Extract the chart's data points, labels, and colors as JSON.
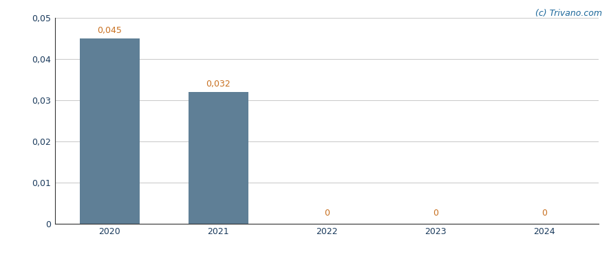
{
  "categories": [
    "2020",
    "2021",
    "2022",
    "2023",
    "2024"
  ],
  "values": [
    0.045,
    0.032,
    0,
    0,
    0
  ],
  "bar_color": "#5f7f96",
  "ylim": [
    0,
    0.05
  ],
  "yticks": [
    0,
    0.01,
    0.02,
    0.03,
    0.04,
    0.05
  ],
  "ytick_labels": [
    "0",
    "0,01",
    "0,02",
    "0,03",
    "0,04",
    "0,05"
  ],
  "bar_labels": [
    "0,045",
    "0,032",
    "0",
    "0",
    "0"
  ],
  "label_color": "#c87020",
  "watermark": "(c) Trivano.com",
  "watermark_color": "#1a6699",
  "background_color": "#ffffff",
  "grid_color": "#cccccc",
  "bar_width": 0.55,
  "tick_label_color": "#1a3a5c",
  "spine_color": "#333333"
}
